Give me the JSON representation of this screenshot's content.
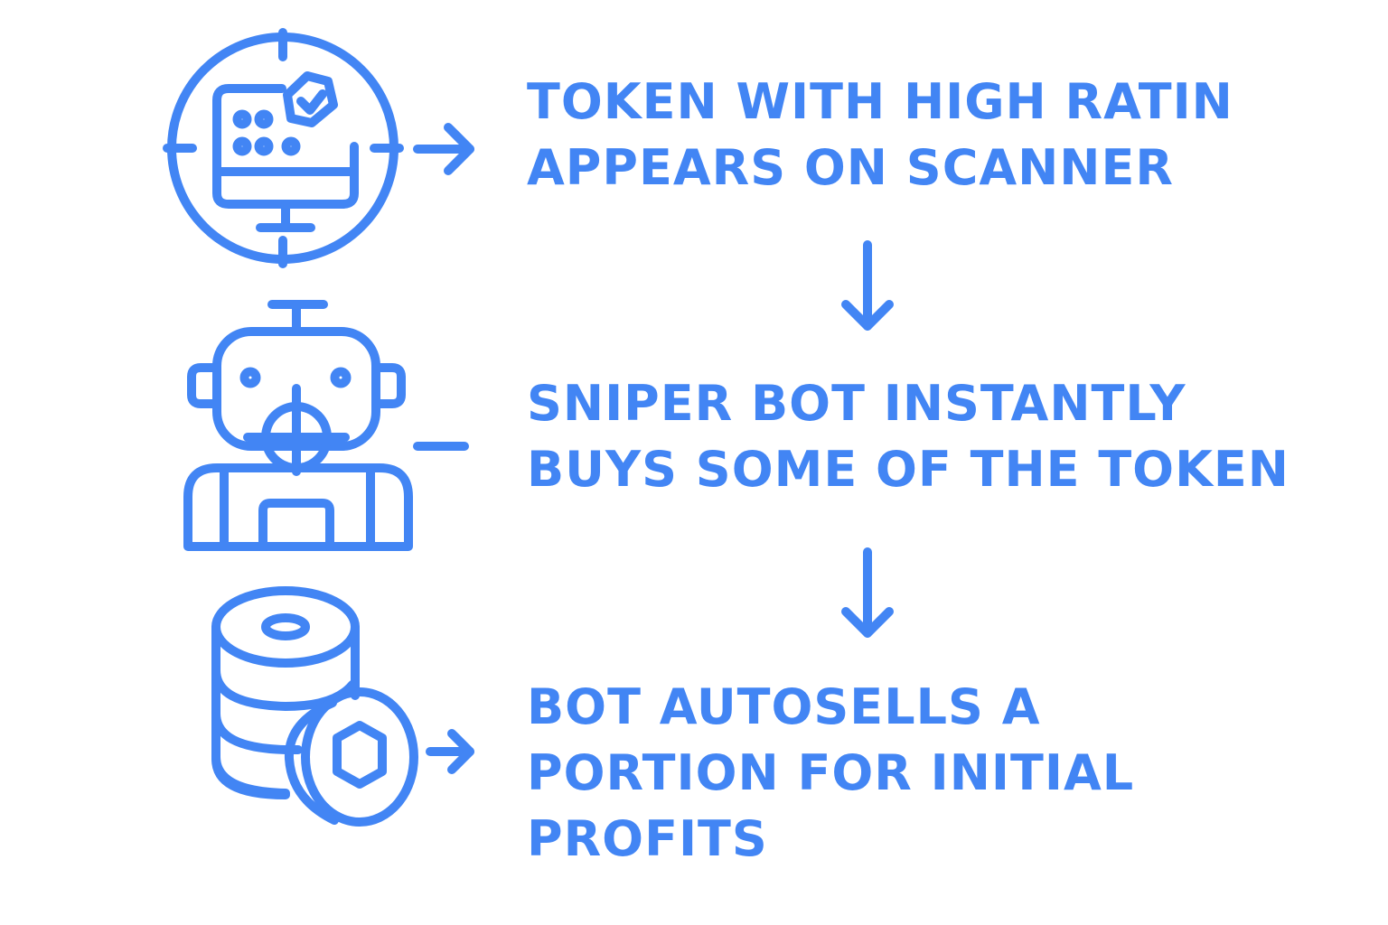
{
  "colors": {
    "accent": "#4285F4",
    "background": "#FFFFFF"
  },
  "steps": [
    {
      "icon": "monitor-target-icon",
      "connector": "arrow-right",
      "text_lines": [
        "TOKEN WITH HIGH RATIN",
        "APPEARS ON SCANNER"
      ]
    },
    {
      "icon": "robot-crosshair-icon",
      "connector": "dash",
      "text_lines": [
        "SNIPER BOT INSTANTLY",
        "BUYS SOME OF THE TOKEN"
      ]
    },
    {
      "icon": "coin-stack-icon",
      "connector": "arrow-right",
      "text_lines": [
        "BOT AUTOSELLS A",
        "PORTION FOR INITIAL",
        "PROFITS"
      ]
    }
  ],
  "flow_arrows": [
    "arrow-down",
    "arrow-down"
  ]
}
